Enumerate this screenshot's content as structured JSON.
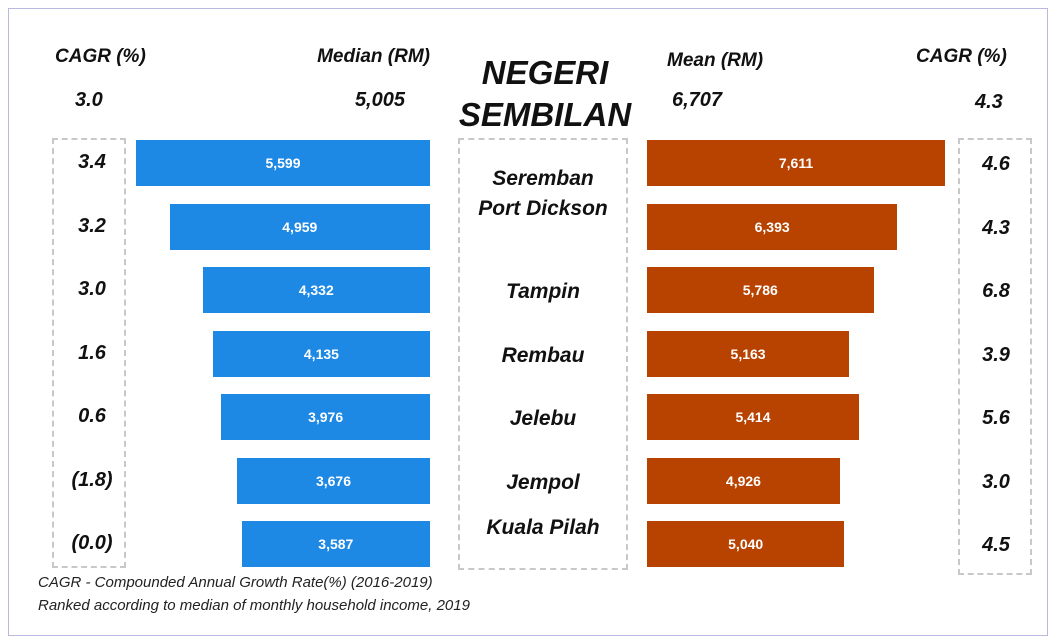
{
  "chart_data": {
    "type": "butterfly",
    "title": "NEGERI SEMBILAN",
    "cagr_label": "CAGR (%)",
    "categories": [
      "Seremban",
      "Port Dickson",
      "Tampin",
      "Rembau",
      "Jelebu",
      "Jempol",
      "Kuala Pilah"
    ],
    "series": [
      {
        "name": "Median (RM)",
        "color": "#1e88e5",
        "values": [
          5599,
          4959,
          4332,
          4135,
          3976,
          3676,
          3587
        ],
        "value_labels": [
          "5,599",
          "4,959",
          "4,332",
          "4,135",
          "3,976",
          "3,676",
          "3,587"
        ],
        "cagr": [
          3.4,
          3.2,
          3.0,
          1.6,
          0.6,
          -1.8,
          0
        ],
        "cagr_labels": [
          "3.4",
          "3.2",
          "3.0",
          "1.6",
          "0.6",
          "(1.8)",
          "(0.0)"
        ],
        "total": 5005,
        "total_label": "5,005",
        "total_cagr": 3.0,
        "total_cagr_label": "3.0"
      },
      {
        "name": "Mean (RM)",
        "color": "#b84300",
        "values": [
          7611,
          6393,
          5786,
          5163,
          5414,
          4926,
          5040
        ],
        "value_labels": [
          "7,611",
          "6,393",
          "5,786",
          "5,163",
          "5,414",
          "4,926",
          "5,040"
        ],
        "cagr": [
          4.6,
          4.3,
          6.8,
          3.9,
          5.6,
          3.0,
          4.5
        ],
        "cagr_labels": [
          "4.6",
          "4.3",
          "6.8",
          "3.9",
          "5.6",
          "3.0",
          "4.5"
        ],
        "total": 6707,
        "total_label": "6,707",
        "total_cagr": 4.3,
        "total_cagr_label": "4.3"
      }
    ],
    "notes": [
      "CAGR - Compounded Annual Growth Rate(%) (2016-2019)",
      "Ranked according to median of monthly household income, 2019"
    ]
  }
}
